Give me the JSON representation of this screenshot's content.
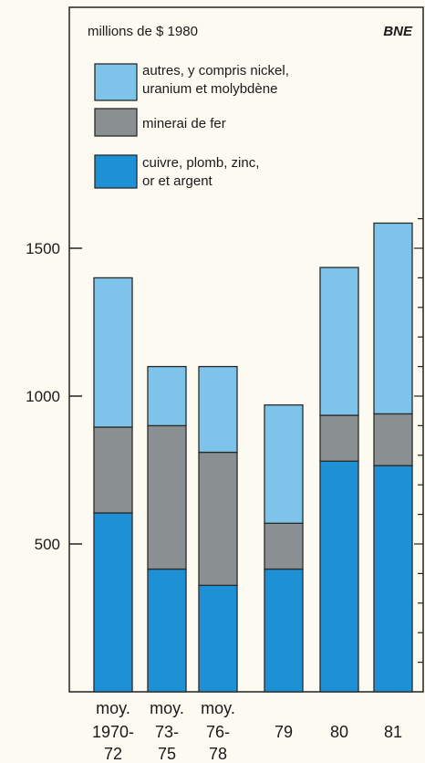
{
  "chart_data": {
    "type": "bar",
    "stacked": true,
    "unit_label": "millions de $ 1980",
    "source": "BNE",
    "ylim": [
      0,
      1600
    ],
    "yticks": [
      500,
      1000,
      1500
    ],
    "grid": false,
    "legend_position": "top-left",
    "categories": [
      [
        "moy.",
        "1970-",
        "72"
      ],
      [
        "moy.",
        "73-",
        "75"
      ],
      [
        "moy.",
        "76-",
        "78"
      ],
      [
        "",
        "79",
        ""
      ],
      [
        "",
        "80",
        ""
      ],
      [
        "",
        "81",
        ""
      ]
    ],
    "series": [
      {
        "name": "cuivre, plomb, zinc, or et argent",
        "legend_lines": [
          "cuivre, plomb, zinc,",
          "or et argent"
        ],
        "color": "#1e90d6",
        "values": [
          605,
          415,
          360,
          415,
          780,
          765
        ]
      },
      {
        "name": "minerai de fer",
        "legend_lines": [
          "minerai de fer"
        ],
        "color": "#8a8f91",
        "values": [
          290,
          485,
          450,
          155,
          155,
          175
        ]
      },
      {
        "name": "autres, y compris nickel, uranium et molybdène",
        "legend_lines": [
          "autres, y compris nickel,",
          "uranium et molybdène"
        ],
        "color": "#7ec3ea",
        "values": [
          505,
          200,
          290,
          400,
          500,
          645
        ]
      }
    ],
    "legend_order": [
      2,
      1,
      0
    ]
  }
}
